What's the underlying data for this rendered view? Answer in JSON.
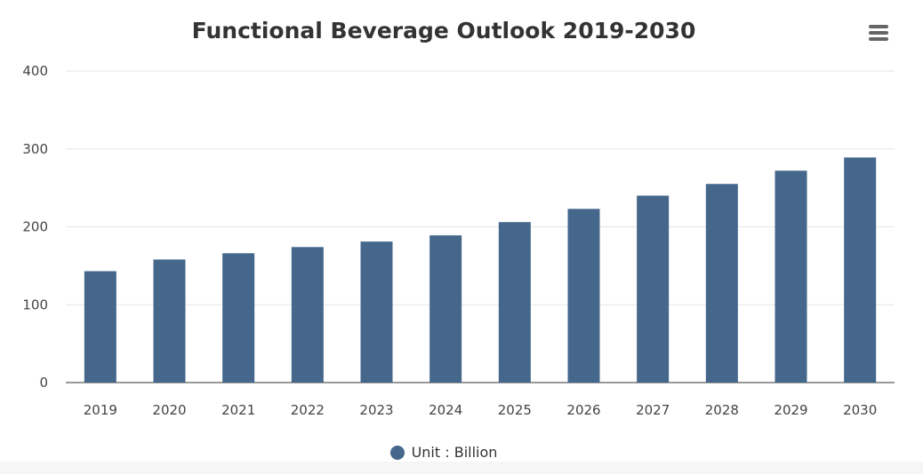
{
  "chart_data": {
    "type": "bar",
    "title": "Functional Beverage Outlook 2019-2030",
    "categories": [
      "2019",
      "2020",
      "2021",
      "2022",
      "2023",
      "2024",
      "2025",
      "2026",
      "2027",
      "2028",
      "2029",
      "2030"
    ],
    "series": [
      {
        "name": "Unit : Billion",
        "values": [
          143,
          158,
          166,
          174,
          181,
          189,
          206,
          223,
          240,
          255,
          272,
          289
        ]
      }
    ],
    "yticks": [
      0,
      100,
      200,
      300,
      400
    ],
    "ylim": [
      0,
      400
    ],
    "xlabel": "",
    "ylabel": "",
    "legend_position": "bottom-center",
    "grid": true
  },
  "colors": {
    "bar": "#44678b",
    "grid": "#e6e6e6",
    "axis": "#333333"
  },
  "menu_icon": "hamburger-menu-icon"
}
